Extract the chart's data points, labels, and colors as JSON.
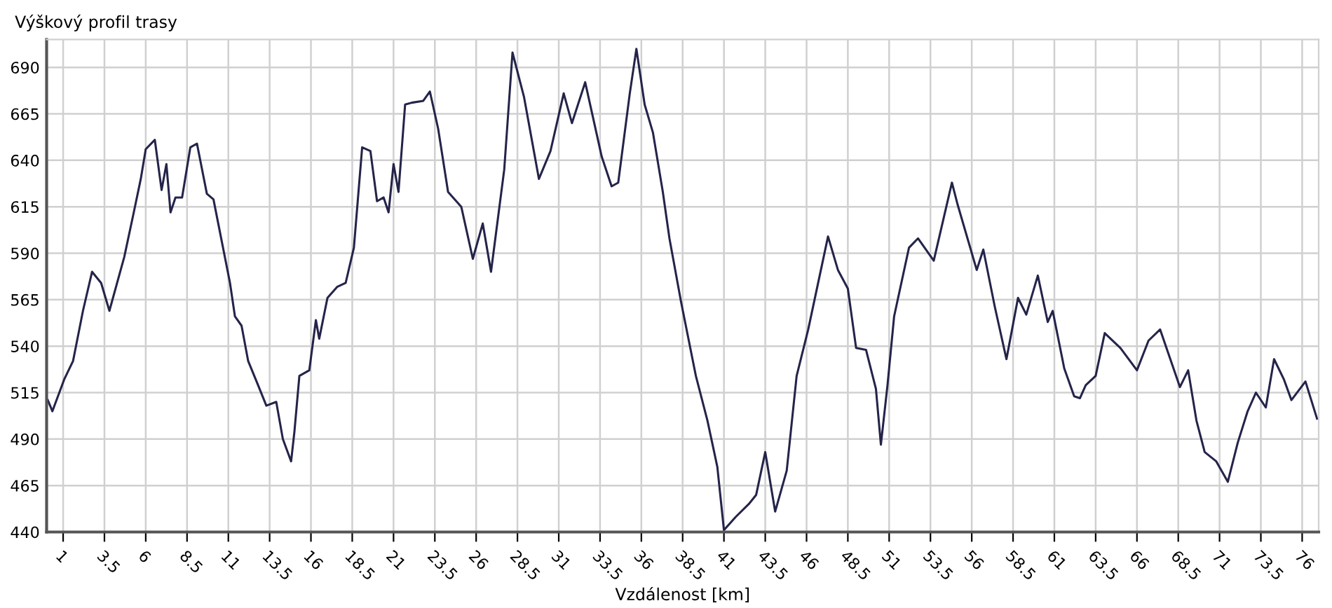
{
  "chart_data": {
    "type": "line",
    "title": "Výškový profil trasy",
    "xlabel": "Vzdálenost [km]",
    "xlim": [
      0,
      77
    ],
    "ylim": [
      440,
      705
    ],
    "xticks": [
      1,
      3.5,
      6,
      8.5,
      11,
      13.5,
      16,
      18.5,
      21,
      23.5,
      26,
      28.5,
      31,
      33.5,
      36,
      38.5,
      41,
      43.5,
      46,
      48.5,
      51,
      53.5,
      56,
      58.5,
      61,
      63.5,
      66,
      68.5,
      71,
      73.5,
      76
    ],
    "yticks": [
      440,
      465,
      490,
      515,
      540,
      565,
      590,
      615,
      640,
      665,
      690
    ],
    "grid": true,
    "legend": false,
    "marker": "none",
    "line_style": "solid",
    "series": [
      {
        "color": "#24244a",
        "x": [
          0.07,
          0.35,
          1.06,
          1.6,
          2.2,
          2.75,
          3.3,
          3.8,
          4.7,
          5.3,
          5.7,
          6.0,
          6.55,
          6.96,
          7.25,
          7.5,
          7.8,
          8.2,
          8.7,
          9.1,
          9.7,
          10.1,
          11.1,
          11.4,
          11.8,
          12.2,
          12.8,
          13.3,
          13.9,
          14.3,
          14.8,
          15.0,
          15.3,
          15.9,
          16.3,
          16.5,
          17.0,
          17.6,
          18.1,
          18.6,
          19.1,
          19.6,
          20.0,
          20.4,
          20.7,
          21.0,
          21.3,
          21.7,
          22.1,
          22.8,
          23.2,
          23.7,
          24.3,
          25.1,
          25.8,
          26.4,
          26.9,
          27.7,
          28.2,
          28.9,
          29.8,
          30.5,
          31.3,
          31.8,
          32.6,
          33.6,
          34.2,
          34.6,
          35.3,
          35.7,
          36.2,
          36.7,
          37.3,
          37.7,
          38.4,
          39.3,
          40.0,
          40.6,
          41.0,
          41.7,
          42.5,
          42.95,
          43.5,
          44.1,
          44.8,
          45.4,
          46.1,
          47.3,
          47.9,
          48.5,
          49.0,
          49.6,
          50.2,
          50.5,
          50.9,
          51.3,
          52.2,
          52.75,
          53.7,
          54.8,
          55.15,
          56.3,
          56.7,
          57.4,
          58.1,
          58.8,
          59.3,
          60.0,
          60.6,
          60.9,
          61.6,
          62.2,
          62.55,
          62.9,
          63.5,
          64.05,
          65.0,
          66.0,
          66.7,
          67.4,
          68.6,
          69.1,
          69.6,
          70.1,
          70.8,
          71.5,
          72.1,
          72.7,
          73.2,
          73.8,
          74.3,
          74.9,
          75.35,
          76.2,
          76.9
        ],
        "values": [
          511,
          505,
          522,
          532,
          559,
          580,
          574,
          559,
          588,
          613,
          630,
          646,
          651,
          624,
          638,
          612,
          620,
          620,
          647,
          649,
          622,
          619,
          574,
          556,
          551,
          532,
          519,
          508,
          510,
          490,
          478,
          494,
          524,
          527,
          554,
          544,
          566,
          572,
          574,
          593,
          647,
          645,
          618,
          620,
          612,
          638,
          623,
          670,
          671,
          672,
          677,
          657,
          623,
          615,
          587,
          606,
          580,
          635,
          698,
          674,
          630,
          645,
          676,
          660,
          682,
          642,
          626,
          628,
          676,
          700,
          670,
          655,
          623,
          598,
          564,
          524,
          500,
          475,
          441,
          448,
          455,
          460,
          483,
          451,
          473,
          524,
          549,
          599,
          581,
          571,
          539,
          538,
          517,
          487,
          519,
          556,
          593,
          598,
          586,
          628,
          616,
          581,
          592,
          561,
          533,
          566,
          557,
          578,
          553,
          559,
          528,
          513,
          512,
          519,
          524,
          547,
          539,
          527,
          543,
          549,
          518,
          527,
          500,
          483,
          478,
          467,
          488,
          505,
          515,
          507,
          533,
          522,
          511,
          521,
          501
        ]
      }
    ]
  }
}
